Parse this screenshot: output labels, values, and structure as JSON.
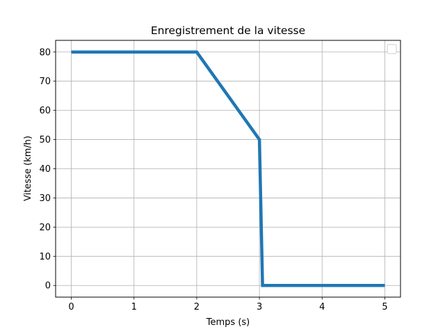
{
  "chart_data": {
    "type": "line",
    "title": "Enregistrement de la vitesse",
    "xlabel": "Temps (s)",
    "ylabel": "Vitesse (km/h)",
    "xlim": [
      -0.25,
      5.25
    ],
    "ylim": [
      -4,
      84
    ],
    "xticks": [
      0,
      1,
      2,
      3,
      4,
      5
    ],
    "yticks": [
      0,
      10,
      20,
      30,
      40,
      50,
      60,
      70,
      80
    ],
    "grid": true,
    "legend": {
      "placement": "top-right",
      "entries": []
    },
    "series": [
      {
        "color": "#1f77b4",
        "x": [
          0,
          2,
          3,
          3.05,
          5
        ],
        "y": [
          80,
          80,
          50,
          0,
          0
        ]
      }
    ]
  }
}
